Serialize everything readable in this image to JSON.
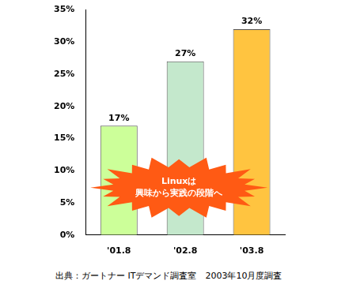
{
  "chart_data": {
    "type": "bar",
    "categories": [
      "'01.8",
      "'02.8",
      "'03.8"
    ],
    "values": [
      17,
      27,
      32
    ],
    "value_labels": [
      "17%",
      "27%",
      "32%"
    ],
    "data_labels": true,
    "colors": [
      "#ccff99",
      "#c4e8cc",
      "#ffc440"
    ],
    "ylim": [
      0,
      35
    ],
    "yticks": [
      {
        "value": 0,
        "label": "0%"
      },
      {
        "value": 5,
        "label": "5%"
      },
      {
        "value": 10,
        "label": "10%"
      },
      {
        "value": 15,
        "label": "15%"
      },
      {
        "value": 20,
        "label": "20%"
      },
      {
        "value": 25,
        "label": "25%"
      },
      {
        "value": 30,
        "label": "30%"
      },
      {
        "value": 35,
        "label": "35%"
      }
    ],
    "grid": false,
    "annotation": [
      "Linuxは",
      "興味から実践の段階へ"
    ],
    "source": "出典：ガートナー ITデマンド調査室　2003年10月度調査"
  }
}
